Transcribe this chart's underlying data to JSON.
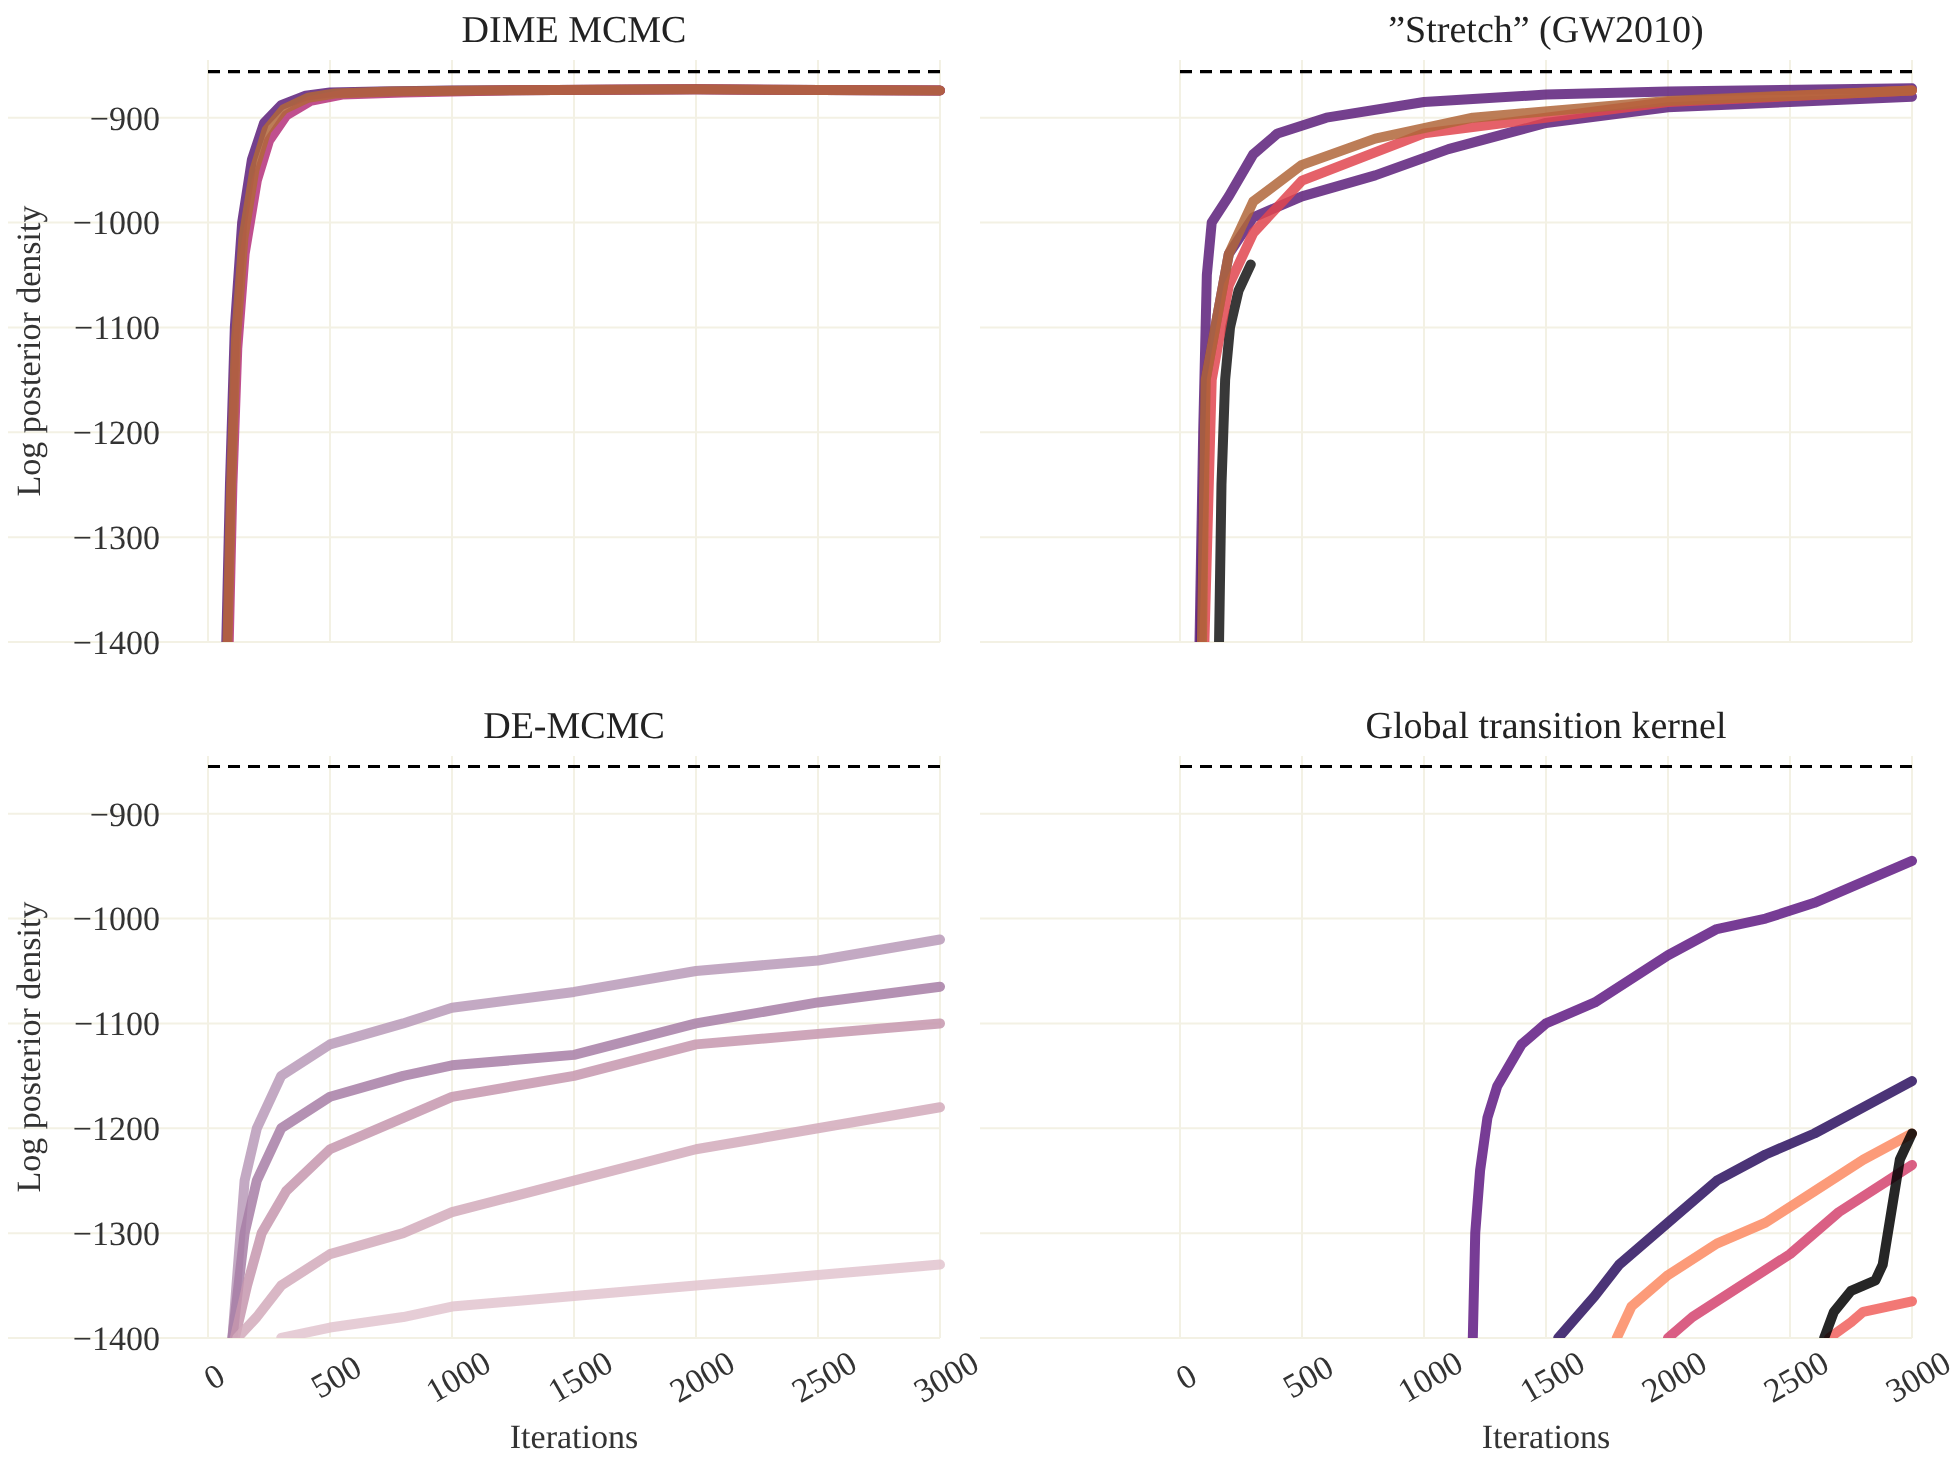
{
  "chart_data": [
    {
      "type": "line",
      "title": "DIME MCMC",
      "ylabel": "Log posterior density",
      "xlim": [
        0,
        3000
      ],
      "xticks": [
        0,
        500,
        1000,
        1500,
        2000,
        2500,
        3000
      ],
      "ylim": [
        -1400,
        -845
      ],
      "yticks": [
        -900,
        -1000,
        -1100,
        -1200,
        -1300,
        -1400
      ],
      "grid": true,
      "tick_labels": "y",
      "ref_lines": [
        {
          "axis": "y",
          "value": -856,
          "color": "#000000",
          "line_style": "dashed"
        }
      ],
      "series": [
        {
          "color": "#5c1f7a",
          "x": [
            75,
            90,
            110,
            140,
            180,
            230,
            300,
            400,
            500,
            700,
            1000,
            2000,
            3000
          ],
          "values": [
            -1400,
            -1250,
            -1100,
            -1000,
            -940,
            -905,
            -888,
            -879,
            -876,
            -875,
            -874,
            -873,
            -874
          ]
        },
        {
          "color": "#b5307a",
          "x": [
            85,
            100,
            120,
            150,
            200,
            250,
            320,
            420,
            550,
            800,
            1200,
            2000,
            3000
          ],
          "values": [
            -1400,
            -1250,
            -1120,
            -1030,
            -960,
            -922,
            -898,
            -884,
            -878,
            -876,
            -874,
            -873,
            -874
          ]
        },
        {
          "color": "#b0663a",
          "x": [
            80,
            95,
            115,
            145,
            190,
            240,
            310,
            410,
            520,
            750,
            1100,
            2000,
            3000
          ],
          "values": [
            -1400,
            -1250,
            -1110,
            -1015,
            -950,
            -912,
            -892,
            -881,
            -877,
            -875,
            -874,
            -873,
            -874
          ]
        }
      ]
    },
    {
      "type": "line",
      "title": "”Stretch” (GW2010)",
      "xlim": [
        0,
        3000
      ],
      "xticks": [
        0,
        500,
        1000,
        1500,
        2000,
        2500,
        3000
      ],
      "ylim": [
        -1400,
        -845
      ],
      "yticks": [
        -900,
        -1000,
        -1100,
        -1200,
        -1300,
        -1400
      ],
      "grid": true,
      "tick_labels": false,
      "ref_lines": [
        {
          "axis": "y",
          "value": -856,
          "color": "#000000",
          "line_style": "dashed"
        }
      ],
      "series": [
        {
          "color": "#151515",
          "x": [
            160,
            170,
            185,
            205,
            240,
            290
          ],
          "values": [
            -1400,
            -1250,
            -1150,
            -1100,
            -1065,
            -1040
          ]
        },
        {
          "color": "#5c1f7a",
          "x": [
            80,
            95,
            110,
            130,
            200,
            300,
            400,
            600,
            1000,
            1500,
            2000,
            3000
          ],
          "values": [
            -1400,
            -1200,
            -1050,
            -1000,
            -975,
            -935,
            -915,
            -900,
            -885,
            -878,
            -875,
            -872
          ]
        },
        {
          "color": "#5c1f7a",
          "x": [
            85,
            105,
            200,
            300,
            500,
            800,
            1100,
            1500,
            2000,
            3000
          ],
          "values": [
            -1400,
            -1150,
            -1030,
            -995,
            -975,
            -955,
            -930,
            -905,
            -890,
            -880
          ]
        },
        {
          "color": "#e0454f",
          "x": [
            100,
            130,
            200,
            300,
            500,
            1000,
            2000,
            3000
          ],
          "values": [
            -1400,
            -1150,
            -1060,
            -1010,
            -960,
            -915,
            -885,
            -874
          ]
        },
        {
          "color": "#b0663a",
          "x": [
            90,
            105,
            200,
            300,
            500,
            800,
            1200,
            2000,
            3000
          ],
          "values": [
            -1400,
            -1150,
            -1030,
            -980,
            -945,
            -920,
            -900,
            -884,
            -874
          ]
        }
      ]
    },
    {
      "type": "line",
      "title": "DE-MCMC",
      "xlabel": "Iterations",
      "ylabel": "Log posterior density",
      "xlim": [
        0,
        3000
      ],
      "xticks": [
        0,
        500,
        1000,
        1500,
        2000,
        2500,
        3000
      ],
      "ylim": [
        -1400,
        -845
      ],
      "yticks": [
        -900,
        -1000,
        -1100,
        -1200,
        -1300,
        -1400
      ],
      "grid": true,
      "ref_lines": [
        {
          "axis": "y",
          "value": -855,
          "color": "#000000",
          "line_style": "dashed"
        }
      ],
      "series": [
        {
          "color": "#b89ab8",
          "x": [
            100,
            150,
            200,
            300,
            500,
            800,
            1000,
            1500,
            2000,
            2500,
            3000
          ],
          "values": [
            -1400,
            -1250,
            -1200,
            -1150,
            -1120,
            -1100,
            -1085,
            -1070,
            -1050,
            -1040,
            -1020
          ]
        },
        {
          "color": "#a77ea6",
          "x": [
            100,
            150,
            200,
            300,
            500,
            800,
            1000,
            1500,
            2000,
            2500,
            3000
          ],
          "values": [
            -1400,
            -1300,
            -1250,
            -1200,
            -1170,
            -1150,
            -1140,
            -1130,
            -1100,
            -1080,
            -1065
          ]
        },
        {
          "color": "#c596ae",
          "x": [
            110,
            160,
            220,
            320,
            500,
            800,
            1000,
            1500,
            2000,
            2500,
            3000
          ],
          "values": [
            -1400,
            -1350,
            -1300,
            -1260,
            -1220,
            -1190,
            -1170,
            -1150,
            -1120,
            -1110,
            -1100
          ]
        },
        {
          "color": "#d2aabb",
          "x": [
            120,
            200,
            300,
            500,
            800,
            1000,
            1500,
            2000,
            2500,
            3000
          ],
          "values": [
            -1400,
            -1380,
            -1350,
            -1320,
            -1300,
            -1280,
            -1250,
            -1220,
            -1200,
            -1180
          ]
        },
        {
          "color": "#e2c4cf",
          "x": [
            300,
            500,
            800,
            1000,
            1500,
            2000,
            2500,
            3000
          ],
          "values": [
            -1400,
            -1390,
            -1380,
            -1370,
            -1360,
            -1350,
            -1340,
            -1330
          ]
        }
      ]
    },
    {
      "type": "line",
      "title": "Global transition kernel",
      "xlabel": "Iterations",
      "xlim": [
        0,
        3000
      ],
      "xticks": [
        0,
        500,
        1000,
        1500,
        2000,
        2500,
        3000
      ],
      "ylim": [
        -1400,
        -845
      ],
      "yticks": [
        -900,
        -1000,
        -1100,
        -1200,
        -1300,
        -1400
      ],
      "grid": true,
      "tick_labels": "x",
      "ref_lines": [
        {
          "axis": "y",
          "value": -855,
          "color": "#000000",
          "line_style": "dashed"
        }
      ],
      "series": [
        {
          "color": "#5f1a82",
          "x": [
            1200,
            1210,
            1230,
            1260,
            1300,
            1400,
            1500,
            1700,
            1900,
            2000,
            2200,
            2400,
            2600,
            2800,
            3000
          ],
          "values": [
            -1400,
            -1300,
            -1240,
            -1190,
            -1160,
            -1120,
            -1100,
            -1080,
            -1050,
            -1035,
            -1010,
            -1000,
            -985,
            -965,
            -945
          ]
        },
        {
          "color": "#2c115f",
          "x": [
            1550,
            1700,
            1800,
            1900,
            2000,
            2200,
            2400,
            2600,
            2800,
            3000
          ],
          "values": [
            -1400,
            -1360,
            -1330,
            -1310,
            -1290,
            -1250,
            -1225,
            -1205,
            -1180,
            -1155
          ]
        },
        {
          "color": "#fc8961",
          "x": [
            1790,
            1850,
            2000,
            2200,
            2400,
            2600,
            2800,
            3000
          ],
          "values": [
            -1400,
            -1370,
            -1340,
            -1310,
            -1290,
            -1260,
            -1230,
            -1205
          ]
        },
        {
          "color": "#d3436e",
          "x": [
            2000,
            2100,
            2300,
            2500,
            2700,
            2900,
            3000
          ],
          "values": [
            -1400,
            -1380,
            -1350,
            -1320,
            -1280,
            -1250,
            -1235
          ]
        },
        {
          "color": "#f0605d",
          "x": [
            2660,
            2750,
            2800,
            2900,
            3000
          ],
          "values": [
            -1400,
            -1385,
            -1375,
            -1370,
            -1365
          ]
        },
        {
          "color": "#000000",
          "x": [
            2640,
            2680,
            2750,
            2850,
            2880,
            2950,
            3000
          ],
          "values": [
            -1400,
            -1375,
            -1355,
            -1345,
            -1330,
            -1230,
            -1205
          ]
        }
      ]
    }
  ]
}
